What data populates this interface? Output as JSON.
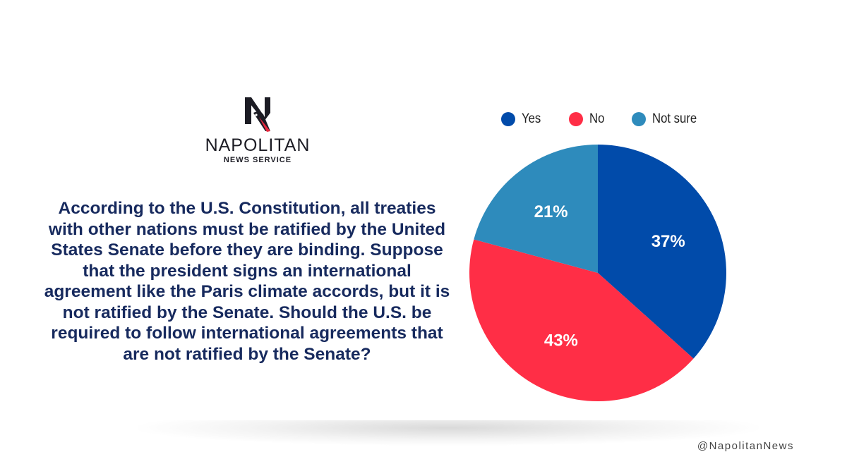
{
  "brand": {
    "name": "NAPOLITAN",
    "subtitle": "NEWS SERVICE",
    "logo_letter": "N"
  },
  "question": "According to the U.S. Constitution, all treaties with other nations must be ratified by the United States Senate before they are binding. Suppose that the president signs an international agreement like the Paris climate accords, but it is not ratified by the Senate. Should the U.S. be required to follow international agreements that are not ratified by the Senate?",
  "footer": {
    "handle": "@NapolitanNews"
  },
  "chart_data": {
    "type": "pie",
    "legend_position": "top",
    "categories": [
      "Yes",
      "No",
      "Not sure"
    ],
    "values": [
      37,
      43,
      21
    ],
    "labels": [
      "37%",
      "43%",
      "21%"
    ],
    "colors": [
      "#014BAA",
      "#FF2E46",
      "#2E8BBC"
    ]
  }
}
